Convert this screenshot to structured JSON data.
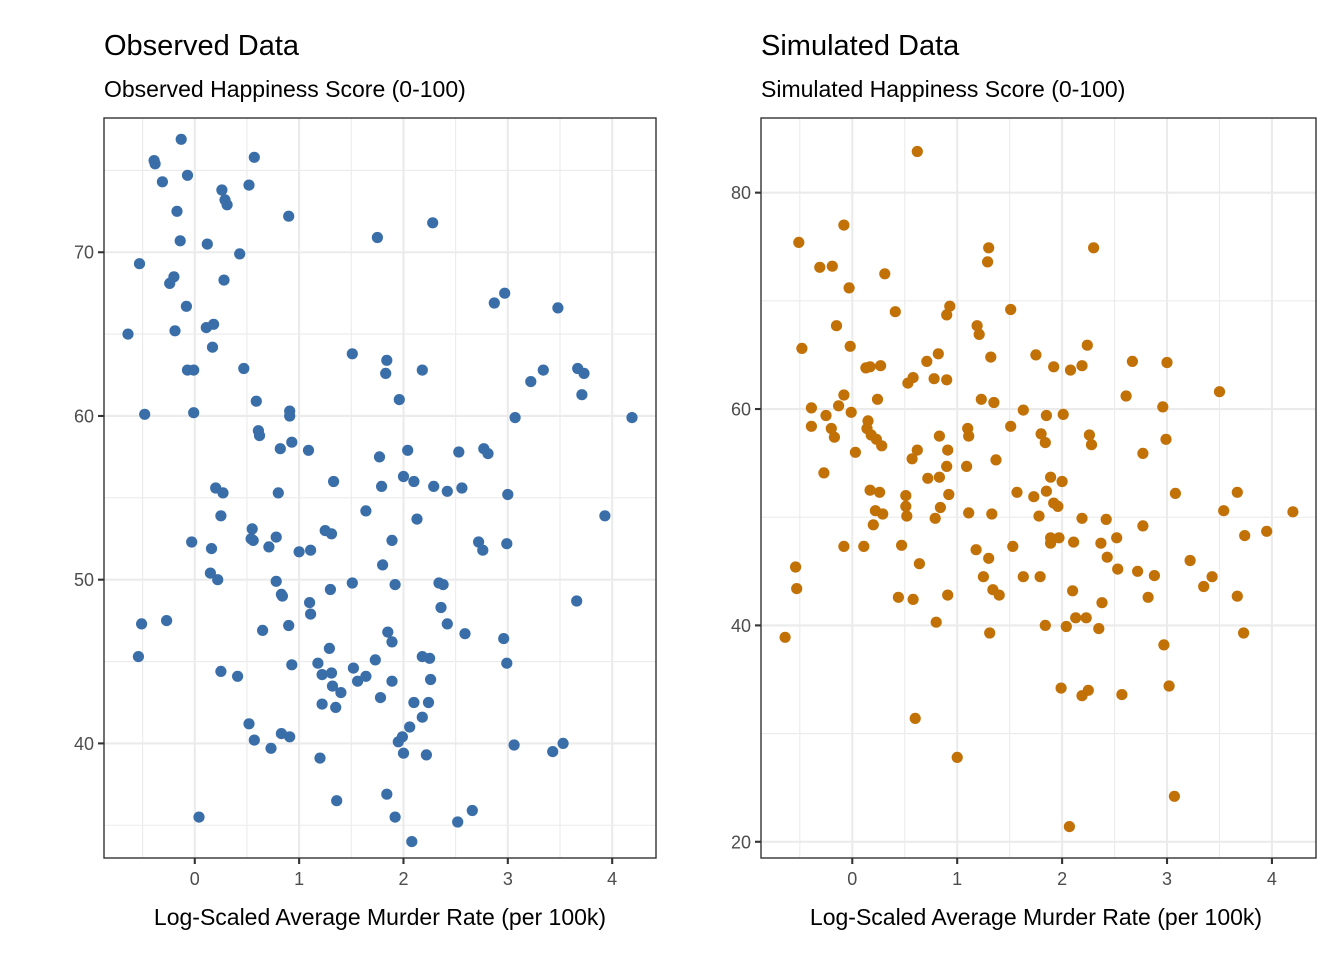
{
  "chart_data": [
    {
      "type": "scatter",
      "title": "Observed Data",
      "subtitle": "Observed Happiness Score (0-100)",
      "xlabel": "Log-Scaled Average Murder Rate (per 100k)",
      "ylabel": "",
      "color": "#3A6EA8",
      "xlim": [
        -0.87,
        4.42
      ],
      "ylim": [
        33.0,
        78.2
      ],
      "xticks": [
        0,
        1,
        2,
        3,
        4
      ],
      "xtick_labels": [
        "0",
        "1",
        "2",
        "3",
        "4"
      ],
      "yticks": [
        40,
        50,
        60,
        70
      ],
      "ytick_labels": [
        "40",
        "50",
        "60",
        "70"
      ],
      "grid": true,
      "points": [
        [
          -0.13,
          76.9
        ],
        [
          -0.39,
          75.6
        ],
        [
          -0.38,
          75.4
        ],
        [
          -0.31,
          74.3
        ],
        [
          -0.07,
          74.7
        ],
        [
          -0.17,
          72.5
        ],
        [
          0.26,
          73.8
        ],
        [
          0.29,
          73.2
        ],
        [
          0.31,
          72.9
        ],
        [
          0.52,
          74.1
        ],
        [
          0.57,
          75.8
        ],
        [
          0.9,
          72.2
        ],
        [
          -0.14,
          70.7
        ],
        [
          0.12,
          70.5
        ],
        [
          0.43,
          69.9
        ],
        [
          -0.53,
          69.3
        ],
        [
          -0.2,
          68.5
        ],
        [
          -0.24,
          68.1
        ],
        [
          0.28,
          68.3
        ],
        [
          -0.08,
          66.7
        ],
        [
          -0.64,
          65.0
        ],
        [
          -0.19,
          65.2
        ],
        [
          0.11,
          65.4
        ],
        [
          0.18,
          65.6
        ],
        [
          0.17,
          64.2
        ],
        [
          -0.07,
          62.8
        ],
        [
          -0.01,
          62.8
        ],
        [
          0.47,
          62.9
        ],
        [
          -0.48,
          60.1
        ],
        [
          -0.01,
          60.2
        ],
        [
          0.59,
          60.9
        ],
        [
          0.61,
          59.1
        ],
        [
          0.62,
          58.8
        ],
        [
          0.91,
          60.3
        ],
        [
          0.91,
          60.0
        ],
        [
          0.93,
          58.4
        ],
        [
          0.82,
          58.0
        ],
        [
          1.09,
          57.9
        ],
        [
          0.2,
          55.6
        ],
        [
          0.27,
          55.3
        ],
        [
          0.25,
          53.9
        ],
        [
          0.8,
          55.3
        ],
        [
          0.56,
          52.4
        ],
        [
          0.55,
          53.1
        ],
        [
          0.54,
          52.5
        ],
        [
          0.16,
          51.9
        ],
        [
          -0.03,
          52.3
        ],
        [
          0.71,
          52.0
        ],
        [
          0.78,
          52.6
        ],
        [
          1.0,
          51.7
        ],
        [
          1.11,
          51.8
        ],
        [
          0.15,
          50.4
        ],
        [
          0.22,
          50.0
        ],
        [
          0.78,
          49.9
        ],
        [
          0.83,
          49.1
        ],
        [
          0.84,
          49.0
        ],
        [
          1.1,
          48.6
        ],
        [
          1.11,
          47.9
        ],
        [
          0.9,
          47.2
        ],
        [
          0.65,
          46.9
        ],
        [
          -0.51,
          47.3
        ],
        [
          -0.27,
          47.5
        ],
        [
          -0.54,
          45.3
        ],
        [
          0.25,
          44.4
        ],
        [
          0.41,
          44.1
        ],
        [
          0.93,
          44.8
        ],
        [
          0.52,
          41.2
        ],
        [
          0.57,
          40.2
        ],
        [
          0.73,
          39.7
        ],
        [
          0.83,
          40.6
        ],
        [
          0.91,
          40.4
        ],
        [
          0.04,
          35.5
        ],
        [
          1.75,
          70.9
        ],
        [
          2.28,
          71.8
        ],
        [
          2.87,
          66.9
        ],
        [
          2.97,
          67.5
        ],
        [
          3.48,
          66.6
        ],
        [
          1.51,
          63.8
        ],
        [
          1.84,
          63.4
        ],
        [
          1.83,
          62.6
        ],
        [
          2.18,
          62.8
        ],
        [
          1.96,
          61.0
        ],
        [
          3.22,
          62.1
        ],
        [
          3.34,
          62.8
        ],
        [
          3.67,
          62.9
        ],
        [
          3.73,
          62.6
        ],
        [
          3.71,
          61.3
        ],
        [
          3.07,
          59.9
        ],
        [
          4.19,
          59.9
        ],
        [
          1.77,
          57.5
        ],
        [
          2.04,
          57.9
        ],
        [
          2.53,
          57.8
        ],
        [
          2.77,
          58.0
        ],
        [
          2.81,
          57.7
        ],
        [
          2.0,
          56.3
        ],
        [
          2.1,
          56.0
        ],
        [
          1.79,
          55.7
        ],
        [
          2.29,
          55.7
        ],
        [
          2.42,
          55.4
        ],
        [
          2.56,
          55.6
        ],
        [
          3.0,
          55.2
        ],
        [
          1.64,
          54.2
        ],
        [
          2.13,
          53.7
        ],
        [
          3.93,
          53.9
        ],
        [
          1.33,
          56.0
        ],
        [
          1.25,
          53.0
        ],
        [
          1.31,
          52.8
        ],
        [
          1.89,
          52.4
        ],
        [
          2.72,
          52.3
        ],
        [
          2.76,
          51.8
        ],
        [
          2.99,
          52.2
        ],
        [
          1.8,
          50.9
        ],
        [
          1.51,
          49.8
        ],
        [
          1.92,
          49.7
        ],
        [
          2.34,
          49.8
        ],
        [
          2.38,
          49.7
        ],
        [
          1.3,
          49.4
        ],
        [
          3.66,
          48.7
        ],
        [
          2.36,
          48.3
        ],
        [
          2.42,
          47.3
        ],
        [
          2.59,
          46.7
        ],
        [
          2.96,
          46.4
        ],
        [
          2.99,
          44.9
        ],
        [
          1.85,
          46.8
        ],
        [
          1.89,
          46.2
        ],
        [
          1.73,
          45.1
        ],
        [
          1.52,
          44.6
        ],
        [
          1.56,
          43.8
        ],
        [
          1.64,
          44.1
        ],
        [
          1.89,
          43.8
        ],
        [
          2.18,
          45.3
        ],
        [
          2.25,
          45.2
        ],
        [
          2.26,
          43.9
        ],
        [
          1.29,
          45.8
        ],
        [
          1.18,
          44.9
        ],
        [
          1.22,
          44.2
        ],
        [
          1.31,
          44.3
        ],
        [
          1.32,
          43.5
        ],
        [
          1.4,
          43.1
        ],
        [
          1.22,
          42.4
        ],
        [
          1.35,
          42.2
        ],
        [
          1.78,
          42.8
        ],
        [
          2.1,
          42.5
        ],
        [
          2.24,
          42.5
        ],
        [
          2.18,
          41.6
        ],
        [
          2.06,
          41.0
        ],
        [
          1.99,
          40.4
        ],
        [
          1.95,
          40.1
        ],
        [
          2.0,
          39.4
        ],
        [
          2.22,
          39.3
        ],
        [
          3.06,
          39.9
        ],
        [
          3.43,
          39.5
        ],
        [
          3.53,
          40.0
        ],
        [
          1.2,
          39.1
        ],
        [
          1.84,
          36.9
        ],
        [
          1.36,
          36.5
        ],
        [
          1.92,
          35.5
        ],
        [
          2.52,
          35.2
        ],
        [
          2.66,
          35.9
        ],
        [
          2.08,
          34.0
        ]
      ]
    },
    {
      "type": "scatter",
      "title": "Simulated Data",
      "subtitle": "Simulated Happiness Score (0-100)",
      "xlabel": "Log-Scaled Average Murder Rate (per 100k)",
      "ylabel": "",
      "color": "#C27107",
      "xlim": [
        -0.87,
        4.42
      ],
      "ylim": [
        18.5,
        86.9
      ],
      "xticks": [
        0,
        1,
        2,
        3,
        4
      ],
      "xtick_labels": [
        "0",
        "1",
        "2",
        "3",
        "4"
      ],
      "yticks": [
        20,
        40,
        60,
        80
      ],
      "ytick_labels": [
        "20",
        "40",
        "60",
        "80"
      ],
      "grid": true,
      "points": [
        [
          0.62,
          83.8
        ],
        [
          -0.51,
          75.4
        ],
        [
          -0.08,
          77.0
        ],
        [
          -0.31,
          73.1
        ],
        [
          -0.19,
          73.2
        ],
        [
          0.31,
          72.5
        ],
        [
          -0.03,
          71.2
        ],
        [
          1.3,
          74.9
        ],
        [
          1.29,
          73.6
        ],
        [
          2.3,
          74.9
        ],
        [
          0.41,
          69.0
        ],
        [
          0.93,
          69.5
        ],
        [
          0.9,
          68.7
        ],
        [
          1.51,
          69.2
        ],
        [
          1.19,
          67.7
        ],
        [
          1.21,
          66.9
        ],
        [
          -0.15,
          67.7
        ],
        [
          -0.48,
          65.6
        ],
        [
          -0.02,
          65.8
        ],
        [
          0.82,
          65.1
        ],
        [
          0.71,
          64.4
        ],
        [
          1.32,
          64.8
        ],
        [
          2.24,
          65.9
        ],
        [
          1.75,
          65.0
        ],
        [
          0.13,
          63.8
        ],
        [
          0.17,
          63.9
        ],
        [
          0.27,
          64.0
        ],
        [
          0.53,
          62.4
        ],
        [
          0.58,
          62.9
        ],
        [
          0.78,
          62.8
        ],
        [
          0.9,
          62.7
        ],
        [
          1.23,
          60.9
        ],
        [
          1.35,
          60.6
        ],
        [
          0.24,
          60.9
        ],
        [
          -0.08,
          61.3
        ],
        [
          1.92,
          63.9
        ],
        [
          2.08,
          63.6
        ],
        [
          2.19,
          64.0
        ],
        [
          2.67,
          64.4
        ],
        [
          3.0,
          64.3
        ],
        [
          2.61,
          61.2
        ],
        [
          2.96,
          60.2
        ],
        [
          3.5,
          61.6
        ],
        [
          -0.39,
          60.1
        ],
        [
          -0.13,
          60.3
        ],
        [
          -0.01,
          59.7
        ],
        [
          -0.25,
          59.4
        ],
        [
          -0.39,
          58.4
        ],
        [
          -0.2,
          58.2
        ],
        [
          -0.17,
          57.4
        ],
        [
          0.15,
          58.9
        ],
        [
          0.14,
          58.2
        ],
        [
          0.18,
          57.6
        ],
        [
          0.23,
          57.2
        ],
        [
          0.28,
          56.6
        ],
        [
          0.03,
          56.0
        ],
        [
          -0.27,
          54.1
        ],
        [
          1.51,
          58.4
        ],
        [
          1.1,
          58.2
        ],
        [
          1.11,
          57.5
        ],
        [
          0.83,
          57.5
        ],
        [
          0.91,
          56.2
        ],
        [
          0.62,
          56.2
        ],
        [
          0.57,
          55.4
        ],
        [
          0.9,
          54.7
        ],
        [
          1.09,
          54.7
        ],
        [
          1.37,
          55.3
        ],
        [
          0.72,
          53.6
        ],
        [
          0.83,
          53.7
        ],
        [
          1.63,
          59.9
        ],
        [
          1.85,
          59.4
        ],
        [
          2.01,
          59.5
        ],
        [
          1.8,
          57.7
        ],
        [
          1.84,
          56.9
        ],
        [
          2.26,
          57.6
        ],
        [
          2.28,
          56.7
        ],
        [
          2.99,
          57.2
        ],
        [
          2.77,
          55.9
        ],
        [
          0.17,
          52.5
        ],
        [
          0.26,
          52.3
        ],
        [
          0.51,
          52.0
        ],
        [
          0.92,
          52.1
        ],
        [
          0.51,
          51.0
        ],
        [
          0.52,
          50.1
        ],
        [
          0.22,
          50.6
        ],
        [
          0.29,
          50.3
        ],
        [
          0.2,
          49.3
        ],
        [
          0.84,
          50.9
        ],
        [
          0.79,
          49.9
        ],
        [
          1.11,
          50.4
        ],
        [
          1.33,
          50.3
        ],
        [
          1.57,
          52.3
        ],
        [
          1.89,
          53.7
        ],
        [
          2.0,
          53.3
        ],
        [
          1.73,
          51.9
        ],
        [
          1.85,
          52.4
        ],
        [
          1.92,
          51.3
        ],
        [
          1.96,
          51.0
        ],
        [
          1.78,
          50.1
        ],
        [
          2.19,
          49.9
        ],
        [
          2.42,
          49.8
        ],
        [
          2.77,
          49.2
        ],
        [
          3.08,
          52.2
        ],
        [
          3.67,
          52.3
        ],
        [
          3.54,
          50.6
        ],
        [
          4.2,
          50.5
        ],
        [
          3.74,
          48.3
        ],
        [
          3.95,
          48.7
        ],
        [
          -0.08,
          47.3
        ],
        [
          0.11,
          47.3
        ],
        [
          0.47,
          47.4
        ],
        [
          1.53,
          47.3
        ],
        [
          1.18,
          47.0
        ],
        [
          1.3,
          46.2
        ],
        [
          0.64,
          45.7
        ],
        [
          1.25,
          44.5
        ],
        [
          1.34,
          43.3
        ],
        [
          1.4,
          42.8
        ],
        [
          -0.54,
          45.4
        ],
        [
          -0.53,
          43.4
        ],
        [
          0.44,
          42.6
        ],
        [
          0.58,
          42.4
        ],
        [
          0.91,
          42.8
        ],
        [
          1.89,
          48.1
        ],
        [
          1.97,
          48.1
        ],
        [
          1.89,
          47.6
        ],
        [
          2.11,
          47.7
        ],
        [
          2.37,
          47.6
        ],
        [
          2.52,
          48.1
        ],
        [
          2.43,
          46.3
        ],
        [
          2.53,
          45.2
        ],
        [
          2.72,
          45.0
        ],
        [
          2.88,
          44.6
        ],
        [
          3.22,
          46.0
        ],
        [
          3.43,
          44.5
        ],
        [
          3.35,
          43.6
        ],
        [
          1.63,
          44.5
        ],
        [
          1.79,
          44.5
        ],
        [
          2.1,
          43.2
        ],
        [
          2.82,
          42.6
        ],
        [
          3.67,
          42.7
        ],
        [
          2.38,
          42.1
        ],
        [
          1.84,
          40.0
        ],
        [
          2.04,
          39.9
        ],
        [
          2.13,
          40.7
        ],
        [
          2.23,
          40.7
        ],
        [
          2.35,
          39.7
        ],
        [
          3.73,
          39.3
        ],
        [
          2.97,
          38.2
        ],
        [
          -0.64,
          38.9
        ],
        [
          0.8,
          40.3
        ],
        [
          1.31,
          39.3
        ],
        [
          1.99,
          34.2
        ],
        [
          2.19,
          33.5
        ],
        [
          2.25,
          34.0
        ],
        [
          2.57,
          33.6
        ],
        [
          3.02,
          34.4
        ],
        [
          0.6,
          31.4
        ],
        [
          1.0,
          27.8
        ],
        [
          3.07,
          24.2
        ],
        [
          2.07,
          21.4
        ]
      ]
    }
  ]
}
